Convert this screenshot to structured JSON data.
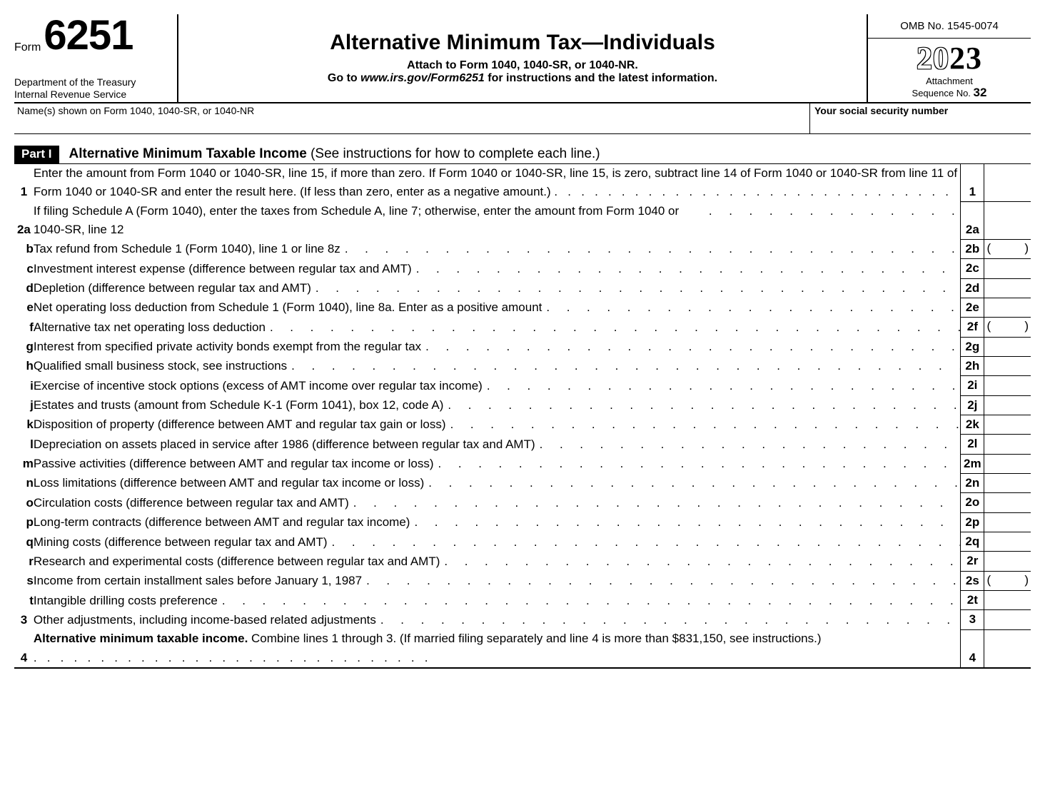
{
  "header": {
    "form_word": "Form",
    "form_number": "6251",
    "department": "Department of the Treasury",
    "agency": "Internal Revenue Service",
    "title": "Alternative Minimum Tax—Individuals",
    "attach_line": "Attach to Form 1040, 1040-SR, or 1040-NR.",
    "goto_prefix": "Go to ",
    "goto_url": "www.irs.gov/Form6251",
    "goto_suffix": " for instructions and the latest information.",
    "omb": "OMB No. 1545-0074",
    "year_outline": "20",
    "year_solid": "23",
    "attach_label": "Attachment",
    "seq_label": "Sequence No. ",
    "seq_no": "32"
  },
  "name_row": {
    "name_label": "Name(s) shown on Form 1040, 1040-SR, or 1040-NR",
    "ssn_label": "Your social security number"
  },
  "part": {
    "tag": "Part I",
    "title_bold": "Alternative Minimum Taxable Income",
    "title_rest": " (See instructions for how to complete each line.)"
  },
  "lines": {
    "l1": {
      "num": "1",
      "text": "Enter the amount from Form 1040 or 1040-SR, line 15, if more than zero. If Form 1040 or 1040-SR, line 15, is zero, subtract line 14 of Form 1040 or 1040-SR from line 11 of Form 1040 or 1040-SR and enter the result here. (If less than zero, enter as a negative amount.)",
      "box": "1"
    },
    "l2a": {
      "num": "2a",
      "text": "If filing Schedule A (Form 1040), enter the taxes from Schedule A, line 7; otherwise, enter the amount from Form 1040 or 1040-SR, line 12",
      "box": "2a"
    },
    "l2b": {
      "num": "b",
      "text": "Tax refund from Schedule 1 (Form 1040), line 1 or line 8z",
      "box": "2b",
      "paren": true
    },
    "l2c": {
      "num": "c",
      "text": "Investment interest expense (difference between regular tax and AMT)",
      "box": "2c"
    },
    "l2d": {
      "num": "d",
      "text": "Depletion (difference between regular tax and AMT)",
      "box": "2d"
    },
    "l2e": {
      "num": "e",
      "text": "Net operating loss deduction from Schedule 1 (Form 1040), line 8a. Enter as a positive amount",
      "box": "2e"
    },
    "l2f": {
      "num": "f",
      "text": "Alternative tax net operating loss deduction",
      "box": "2f",
      "paren": true
    },
    "l2g": {
      "num": "g",
      "text": "Interest from specified private activity bonds exempt from the regular tax",
      "box": "2g"
    },
    "l2h": {
      "num": "h",
      "text": "Qualified small business stock, see instructions",
      "box": "2h"
    },
    "l2i": {
      "num": "i",
      "text": "Exercise of incentive stock options (excess of AMT income over regular tax income)",
      "box": "2i"
    },
    "l2j": {
      "num": "j",
      "text": "Estates and trusts (amount from Schedule K-1 (Form 1041), box 12, code A)",
      "box": "2j"
    },
    "l2k": {
      "num": "k",
      "text": "Disposition of property (difference between AMT and regular tax gain or loss)",
      "box": "2k"
    },
    "l2l": {
      "num": "l",
      "text": "Depreciation on assets placed in service after 1986 (difference between regular tax and AMT)",
      "box": "2l"
    },
    "l2m": {
      "num": "m",
      "text": "Passive activities (difference between AMT and regular tax income or loss)",
      "box": "2m"
    },
    "l2n": {
      "num": "n",
      "text": "Loss limitations (difference between AMT and regular tax income or loss)",
      "box": "2n"
    },
    "l2o": {
      "num": "o",
      "text": "Circulation costs (difference between regular tax and AMT)",
      "box": "2o"
    },
    "l2p": {
      "num": "p",
      "text": "Long-term contracts (difference between AMT and regular tax income)",
      "box": "2p"
    },
    "l2q": {
      "num": "q",
      "text": "Mining costs (difference between regular tax and AMT)",
      "box": "2q"
    },
    "l2r": {
      "num": "r",
      "text": "Research and experimental costs (difference between regular tax and AMT)",
      "box": "2r"
    },
    "l2s": {
      "num": "s",
      "text": "Income from certain installment sales before January 1, 1987",
      "box": "2s",
      "paren": true
    },
    "l2t": {
      "num": "t",
      "text": "Intangible drilling costs preference",
      "box": "2t"
    },
    "l3": {
      "num": "3",
      "text": "Other adjustments, including income-based related adjustments",
      "box": "3"
    },
    "l4": {
      "num": "4",
      "bold": "Alternative minimum taxable income.",
      "text": " Combine lines 1 through 3. (If married filing separately and line 4 is more than $831,150, see instructions.)",
      "box": "4"
    }
  },
  "style": {
    "grey": "#dcdcdc",
    "dot_spacing": "     "
  }
}
